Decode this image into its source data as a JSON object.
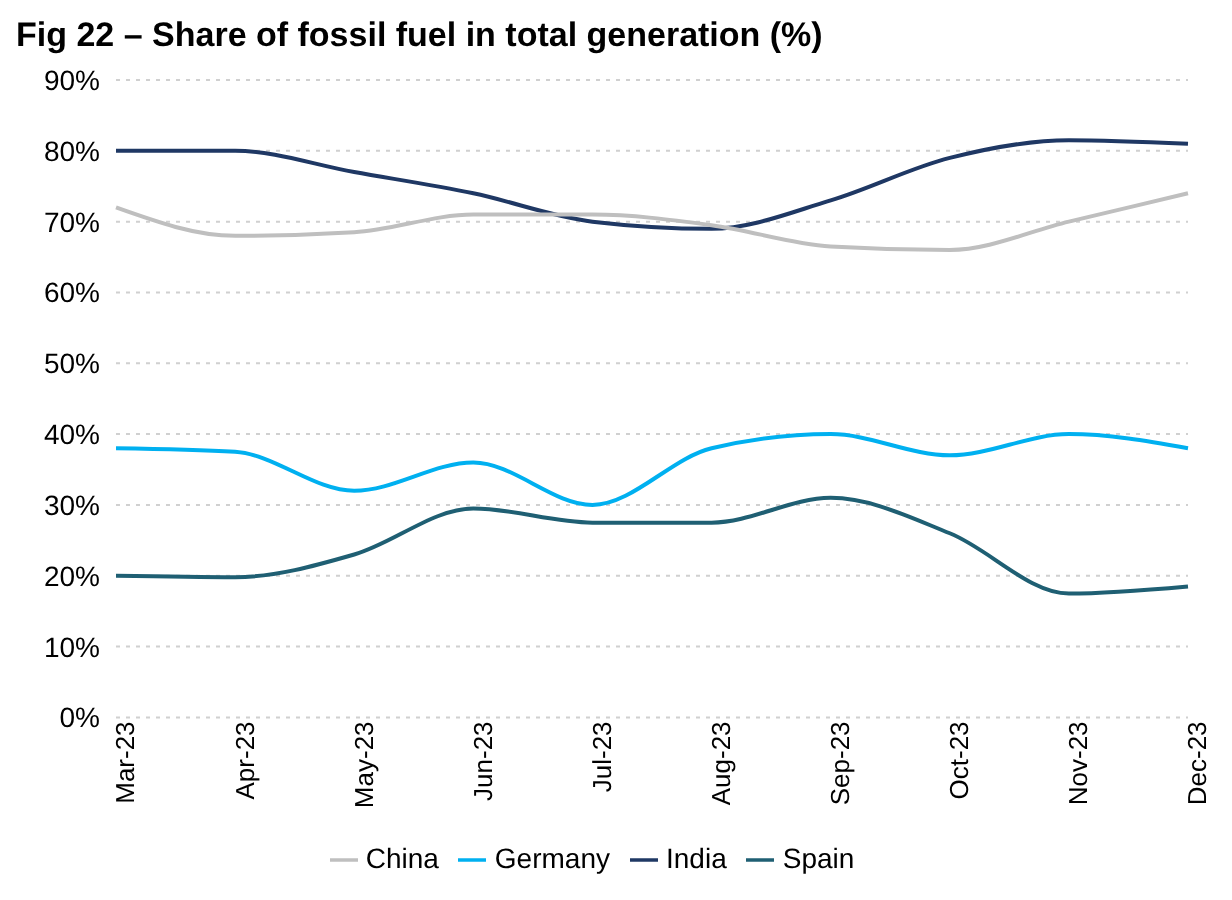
{
  "chart_data": {
    "type": "line",
    "title": "Fig 22 – Share of fossil fuel in total generation (%)",
    "categories": [
      "Mar-23",
      "Apr-23",
      "May-23",
      "Jun-23",
      "Jul-23",
      "Aug-23",
      "Sep-23",
      "Oct-23",
      "Nov-23",
      "Dec-23"
    ],
    "series": [
      {
        "name": "India",
        "color": "#1f3864",
        "values": [
          80,
          80,
          77,
          74,
          70,
          69,
          73,
          79,
          81.5,
          81
        ]
      },
      {
        "name": "China",
        "color": "#bfbfbf",
        "values": [
          72,
          68,
          68.5,
          71,
          71,
          69.5,
          66.5,
          66,
          70,
          74
        ]
      },
      {
        "name": "Germany",
        "color": "#00b0f0",
        "values": [
          38,
          37.5,
          32,
          36,
          30,
          38,
          40,
          37,
          40,
          38
        ]
      },
      {
        "name": "Spain",
        "color": "#1f5f73",
        "values": [
          20,
          19.8,
          23,
          29.5,
          27.5,
          27.5,
          31,
          26,
          17.5,
          18.5
        ]
      }
    ],
    "ylim": [
      0,
      90
    ],
    "yticks": [
      {
        "value": 0,
        "label": "0%"
      },
      {
        "value": 10,
        "label": "10%"
      },
      {
        "value": 20,
        "label": "20%"
      },
      {
        "value": 30,
        "label": "30%"
      },
      {
        "value": 40,
        "label": "40%"
      },
      {
        "value": 50,
        "label": "50%"
      },
      {
        "value": 60,
        "label": "60%"
      },
      {
        "value": 70,
        "label": "70%"
      },
      {
        "value": 80,
        "label": "80%"
      },
      {
        "value": 90,
        "label": "90%"
      }
    ],
    "grid": "y",
    "legend": "bottom",
    "marker": "none",
    "line_style": "solid"
  }
}
